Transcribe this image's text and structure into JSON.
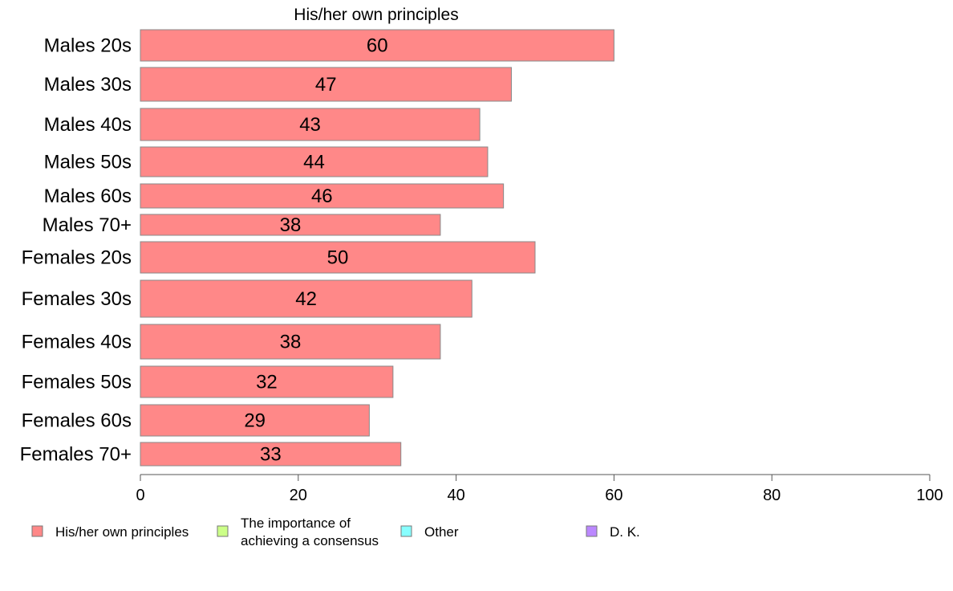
{
  "chart_data": {
    "type": "bar",
    "orientation": "horizontal",
    "title": "His/her own principles",
    "categories": [
      "Males 20s",
      "Males 30s",
      "Males 40s",
      "Males 50s",
      "Males 60s",
      "Males 70+",
      "Females 20s",
      "Females 30s",
      "Females 40s",
      "Females 50s",
      "Females 60s",
      "Females 70+"
    ],
    "values": [
      60,
      47,
      43,
      44,
      46,
      38,
      50,
      42,
      38,
      32,
      29,
      33
    ],
    "value_labels": [
      "60",
      "47",
      "43",
      "44",
      "46",
      "38",
      "50",
      "42",
      "38",
      "32",
      "29",
      "33"
    ],
    "xlim": [
      0,
      100
    ],
    "xticks": [
      0,
      20,
      40,
      60,
      80,
      100
    ],
    "xtick_labels": [
      "0",
      "20",
      "40",
      "60",
      "80",
      "100"
    ],
    "grid": false,
    "legend_position": "bottom",
    "legend": [
      {
        "lines": [
          "His/her own principles"
        ],
        "color": "#ff8888"
      },
      {
        "lines": [
          "The importance of",
          "achieving a consensus"
        ],
        "color": "#ccff88"
      },
      {
        "lines": [
          "Other"
        ],
        "color": "#88ffff"
      },
      {
        "lines": [
          "D. K."
        ],
        "color": "#bb88ff"
      }
    ],
    "bar_color": "#ff8888",
    "bar_stroke": "#888888"
  }
}
